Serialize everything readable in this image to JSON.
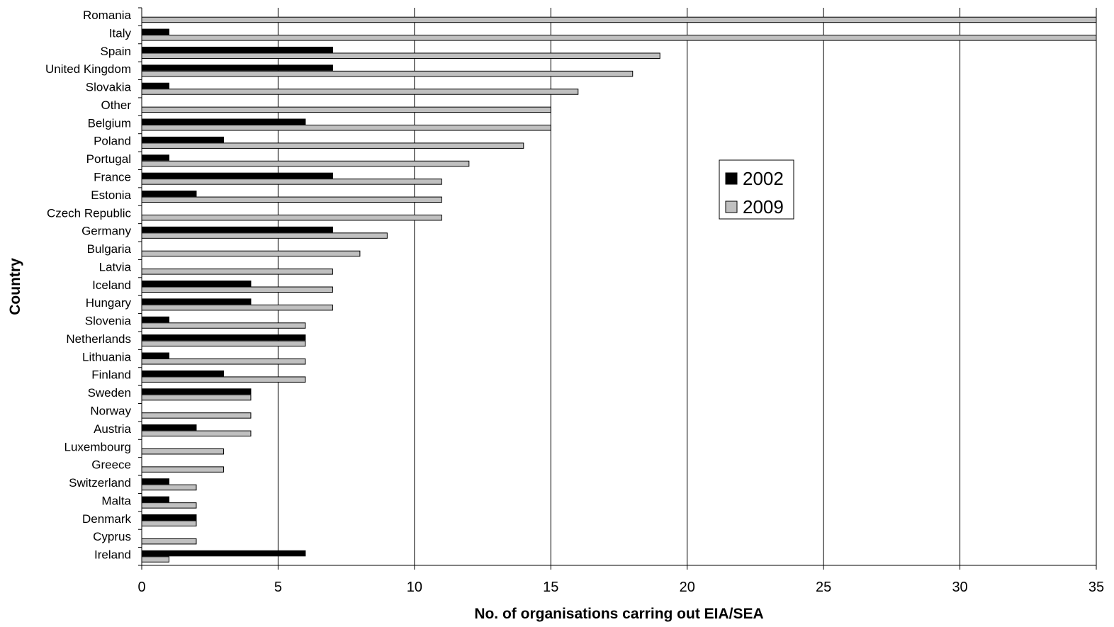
{
  "chart_data": {
    "type": "bar",
    "orientation": "horizontal",
    "xlabel": "No. of organisations carring out EIA/SEA",
    "ylabel": "Country",
    "xlim": [
      0,
      35
    ],
    "xticks": [
      0,
      5,
      10,
      15,
      20,
      25,
      30,
      35
    ],
    "grid": "vertical",
    "legend": "right",
    "categories": [
      "Romania",
      "Italy",
      "Spain",
      "United Kingdom",
      "Slovakia",
      "Other",
      "Belgium",
      "Poland",
      "Portugal",
      "France",
      "Estonia",
      "Czech Republic",
      "Germany",
      "Bulgaria",
      "Latvia",
      "Iceland",
      "Hungary",
      "Slovenia",
      "Netherlands",
      "Lithuania",
      "Finland",
      "Sweden",
      "Norway",
      "Austria",
      "Luxembourg",
      "Greece",
      "Switzerland",
      "Malta",
      "Denmark",
      "Cyprus",
      "Ireland"
    ],
    "series": [
      {
        "name": "2002",
        "color": "#000000",
        "values": [
          0,
          1,
          7,
          7,
          1,
          0,
          6,
          3,
          1,
          7,
          2,
          0,
          7,
          0,
          0,
          4,
          4,
          1,
          6,
          1,
          3,
          4,
          0,
          2,
          0,
          0,
          1,
          1,
          2,
          0,
          6
        ]
      },
      {
        "name": "2009",
        "color": "#c0c0c0",
        "values": [
          35,
          35,
          19,
          18,
          16,
          15,
          15,
          14,
          12,
          11,
          11,
          11,
          9,
          8,
          7,
          7,
          7,
          6,
          6,
          6,
          6,
          4,
          4,
          4,
          3,
          3,
          2,
          2,
          2,
          2,
          1
        ]
      }
    ]
  }
}
